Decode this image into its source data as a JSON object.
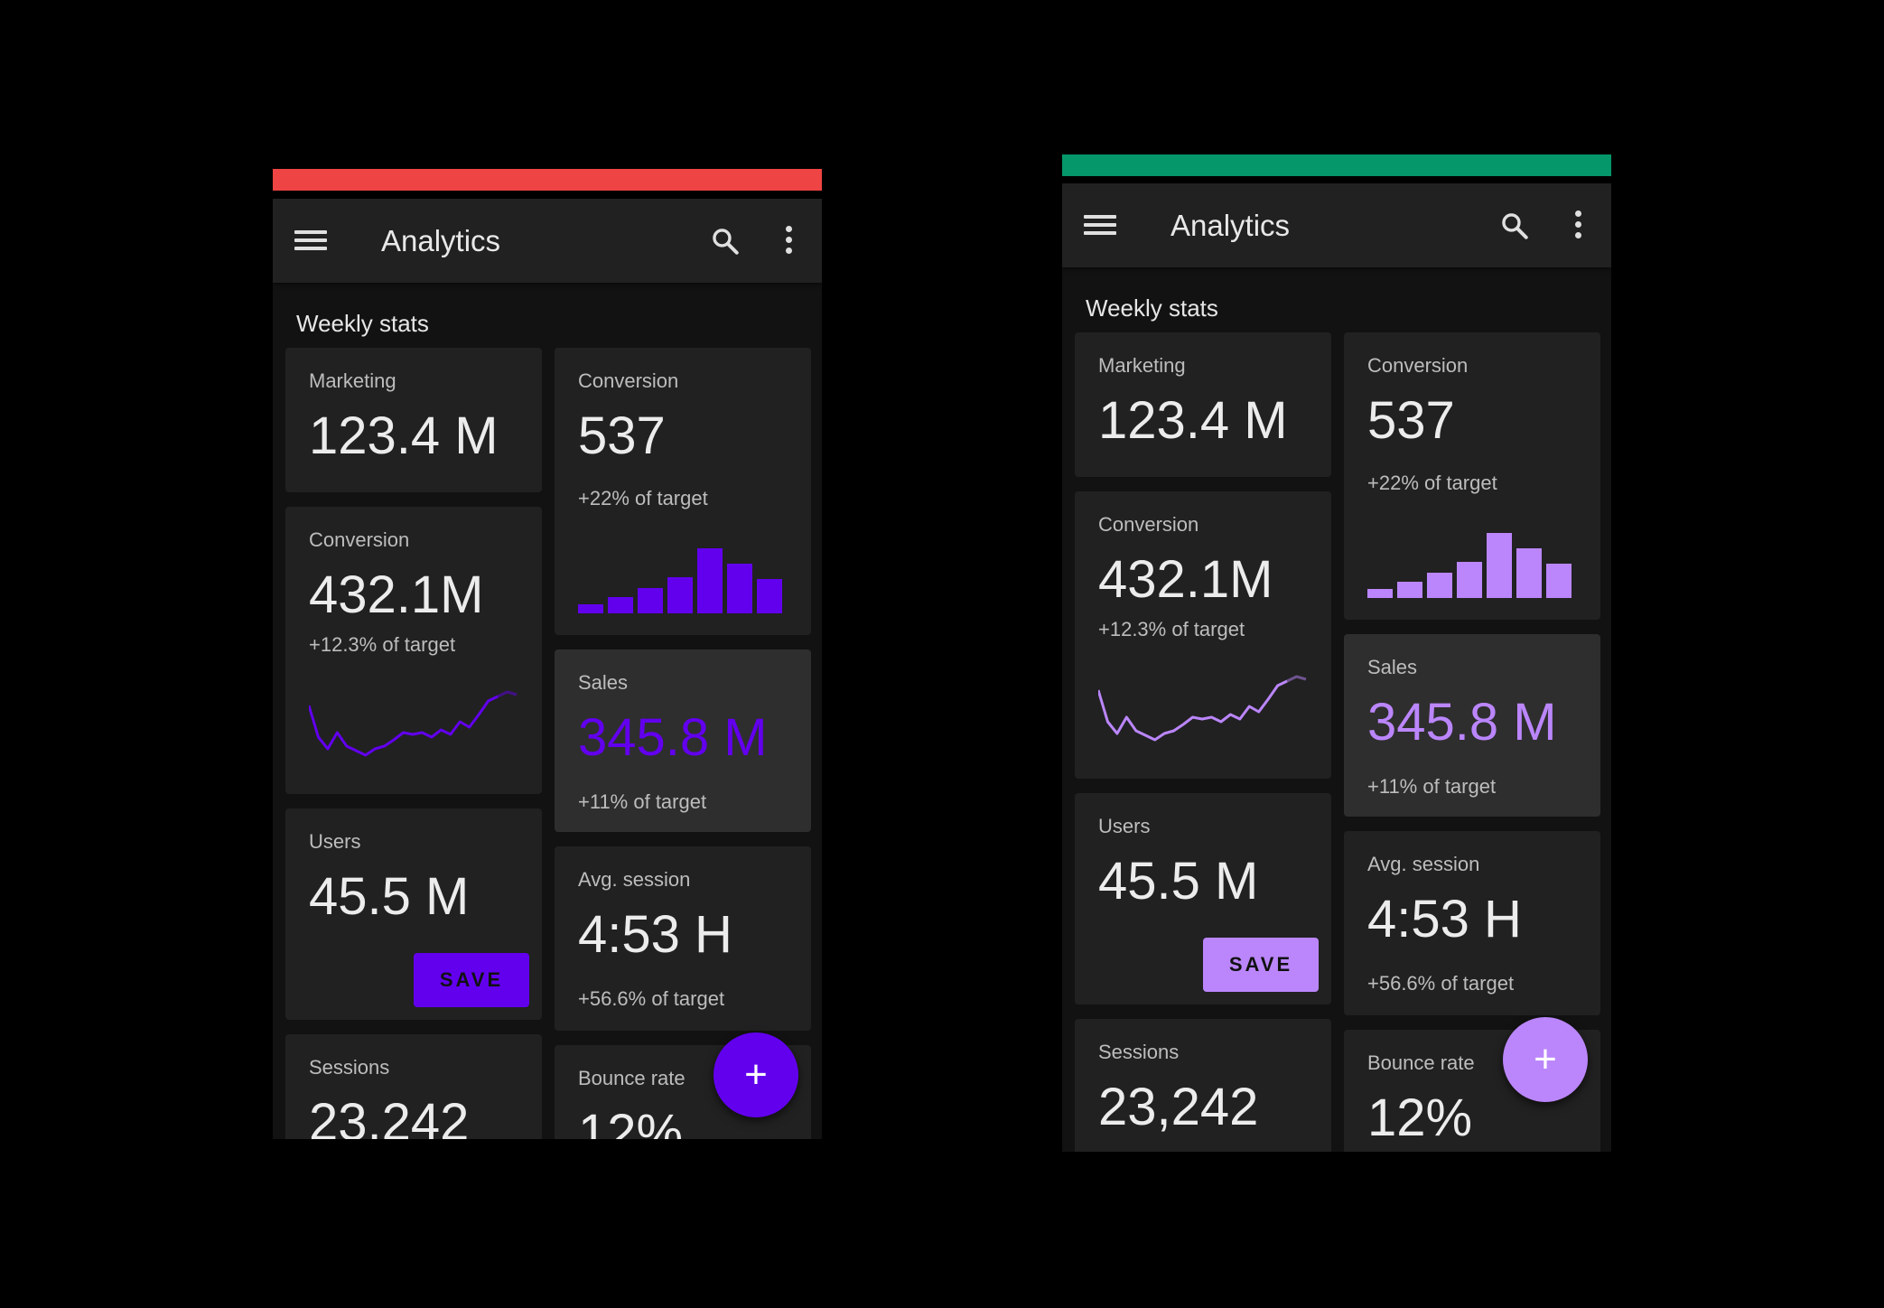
{
  "title": "Analytics",
  "section_title": "Weekly stats",
  "cards": {
    "marketing": {
      "label": "Marketing",
      "value": "123.4 M"
    },
    "conversion_bars": {
      "label": "Conversion",
      "value": "537",
      "sub": "+22% of target",
      "bar_values": [
        10,
        18,
        28,
        40,
        72,
        55,
        38
      ]
    },
    "conversion_line": {
      "label": "Conversion",
      "value": "432.1M",
      "sub": "+12.3% of target",
      "line_values": [
        60,
        25,
        12,
        30,
        15,
        10,
        5,
        12,
        15,
        22,
        30,
        28,
        30,
        25,
        33,
        28,
        42,
        36,
        50,
        65,
        70,
        75,
        72
      ]
    },
    "sales": {
      "label": "Sales",
      "value": "345.8 M",
      "sub": "+11% of target"
    },
    "users": {
      "label": "Users",
      "value": "45.5 M",
      "button": "SAVE"
    },
    "avg_session": {
      "label": "Avg. session",
      "value": "4:53 H",
      "sub": "+56.6% of target"
    },
    "sessions": {
      "label": "Sessions",
      "value": "23,242"
    },
    "bounce": {
      "label": "Bounce rate",
      "value": "12%"
    }
  },
  "fab_icon": "plus-icon",
  "themes": {
    "left": {
      "indicator": "#ef4444",
      "accent": "#6200ee"
    },
    "right": {
      "indicator": "#059669",
      "accent": "#bb86fc"
    }
  }
}
